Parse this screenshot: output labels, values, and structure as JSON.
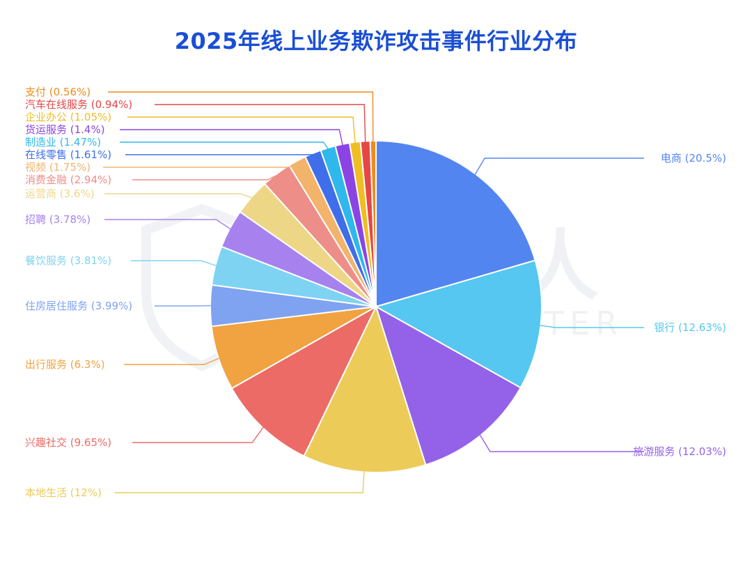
{
  "chart_data": {
    "type": "pie",
    "title": "2025年线上业务欺诈攻击事件行业分布",
    "watermark": {
      "main": "威胁猎人",
      "sub": "THREAT HUNTER"
    },
    "slices": [
      {
        "label": "电商",
        "value": 20.5,
        "display": "电商 (20.5%)",
        "color": "#5385F0",
        "side": "right"
      },
      {
        "label": "银行",
        "value": 12.63,
        "display": "银行 (12.63%)",
        "color": "#55C7F0",
        "side": "right"
      },
      {
        "label": "旅游服务",
        "value": 12.03,
        "display": "旅游服务 (12.03%)",
        "color": "#9462E8",
        "side": "right"
      },
      {
        "label": "本地生活",
        "value": 12,
        "display": "本地生活 (12%)",
        "color": "#ECCB58",
        "side": "left"
      },
      {
        "label": "兴趣社交",
        "value": 9.65,
        "display": "兴趣社交 (9.65%)",
        "color": "#EC6B66",
        "side": "left"
      },
      {
        "label": "出行服务",
        "value": 6.3,
        "display": "出行服务 (6.3%)",
        "color": "#F0A340",
        "side": "left"
      },
      {
        "label": "住房居住服务",
        "value": 3.99,
        "display": "住房居住服务 (3.99%)",
        "color": "#7FA3F0",
        "side": "left"
      },
      {
        "label": "餐饮服务",
        "value": 3.81,
        "display": "餐饮服务 (3.81%)",
        "color": "#7FD3F2",
        "side": "left"
      },
      {
        "label": "招聘",
        "value": 3.78,
        "display": "招聘 (3.78%)",
        "color": "#A782EE",
        "side": "left"
      },
      {
        "label": "运营商",
        "value": 3.6,
        "display": "运营商 (3.6%)",
        "color": "#EDD787",
        "side": "left"
      },
      {
        "label": "消费金融",
        "value": 2.94,
        "display": "消费金融 (2.94%)",
        "color": "#EE8E88",
        "side": "left"
      },
      {
        "label": "视频",
        "value": 1.75,
        "display": "视频 (1.75%)",
        "color": "#F2B36B",
        "side": "left"
      },
      {
        "label": "在线零售",
        "value": 1.61,
        "display": "在线零售 (1.61%)",
        "color": "#3F6EEA",
        "side": "left"
      },
      {
        "label": "制造业",
        "value": 1.47,
        "display": "制造业 (1.47%)",
        "color": "#2EB8EC",
        "side": "left"
      },
      {
        "label": "货运服务",
        "value": 1.4,
        "display": "货运服务 (1.4%)",
        "color": "#8B44E4",
        "side": "left"
      },
      {
        "label": "企业办公",
        "value": 1.05,
        "display": "企业办公 (1.05%)",
        "color": "#EFBE22",
        "side": "left"
      },
      {
        "label": "汽车在线服务",
        "value": 0.94,
        "display": "汽车在线服务 (0.94%)",
        "color": "#E84545",
        "side": "left"
      },
      {
        "label": "支付",
        "value": 0.56,
        "display": "支付 (0.56%)",
        "color": "#F08A1C",
        "side": "left"
      }
    ]
  }
}
